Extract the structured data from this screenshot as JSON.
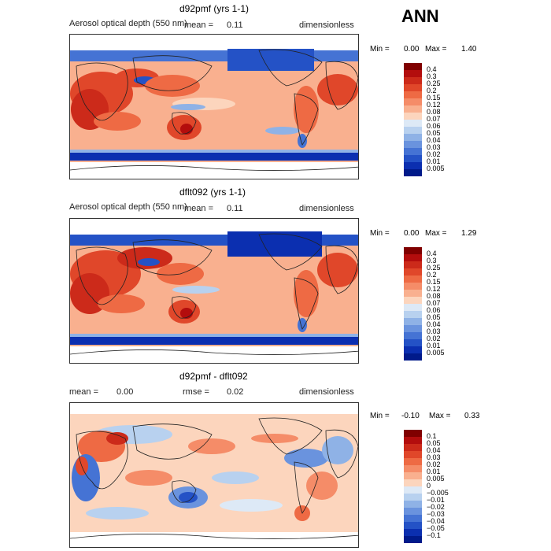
{
  "season": "ANN",
  "panels": [
    {
      "title": "d92pmf (yrs 1-1)",
      "variable": "Aerosol optical depth (550 nm)",
      "stats": [
        {
          "label": "mean =",
          "value": "0.11"
        }
      ],
      "units": "dimensionless",
      "min_label": "Min =",
      "min": "0.00",
      "max_label": "Max =",
      "max": "1.40"
    },
    {
      "title": "dflt092 (yrs 1-1)",
      "variable": "Aerosol optical depth (550 nm)",
      "stats": [
        {
          "label": "mean =",
          "value": "0.11"
        }
      ],
      "units": "dimensionless",
      "min_label": "Min =",
      "min": "0.00",
      "max_label": "Max =",
      "max": "1.29"
    },
    {
      "title": "d92pmf - dflt092",
      "variable": "",
      "stats": [
        {
          "label": "mean =",
          "value": "0.00"
        },
        {
          "label": "rmse =",
          "value": "0.02"
        }
      ],
      "units": "dimensionless",
      "min_label": "Min =",
      "min": "-0.10",
      "max_label": "Max =",
      "max": "0.33"
    }
  ],
  "colorbar_abs": {
    "levels": [
      "0.4",
      "0.3",
      "0.25",
      "0.2",
      "0.15",
      "0.12",
      "0.08",
      "0.07",
      "0.06",
      "0.05",
      "0.04",
      "0.03",
      "0.02",
      "0.01",
      "0.005"
    ],
    "colors": [
      "#800000",
      "#b30d0d",
      "#cc2a1a",
      "#e0472a",
      "#ee6a44",
      "#f58c68",
      "#f9b08f",
      "#fcd5bd",
      "#dde9f6",
      "#b8d1ef",
      "#8fb2e6",
      "#6a93de",
      "#4573d4",
      "#2452c6",
      "#0b2fb0",
      "#001a8a"
    ]
  },
  "colorbar_diff": {
    "levels": [
      "0.1",
      "0.05",
      "0.04",
      "0.03",
      "0.02",
      "0.01",
      "0.005",
      "0",
      "−0.005",
      "−0.01",
      "−0.02",
      "−0.03",
      "−0.04",
      "−0.05",
      "−0.1"
    ],
    "colors": [
      "#800000",
      "#b30d0d",
      "#cc2a1a",
      "#e0472a",
      "#ee6a44",
      "#f58c68",
      "#f9b08f",
      "#fcd5bd",
      "#dde9f6",
      "#b8d1ef",
      "#8fb2e6",
      "#6a93de",
      "#4573d4",
      "#2452c6",
      "#0b2fb0",
      "#001a8a"
    ]
  },
  "chart_data": [
    {
      "type": "heatmap",
      "title": "d92pmf (yrs 1-1)",
      "variable": "Aerosol optical depth (550 nm)",
      "units": "dimensionless",
      "mean": 0.11,
      "min": 0.0,
      "max": 1.4
    },
    {
      "type": "heatmap",
      "title": "dflt092 (yrs 1-1)",
      "variable": "Aerosol optical depth (550 nm)",
      "units": "dimensionless",
      "mean": 0.11,
      "min": 0.0,
      "max": 1.29
    },
    {
      "type": "heatmap",
      "title": "d92pmf - dflt092",
      "units": "dimensionless",
      "mean": 0.0,
      "rmse": 0.02,
      "min": -0.1,
      "max": 0.33
    }
  ]
}
